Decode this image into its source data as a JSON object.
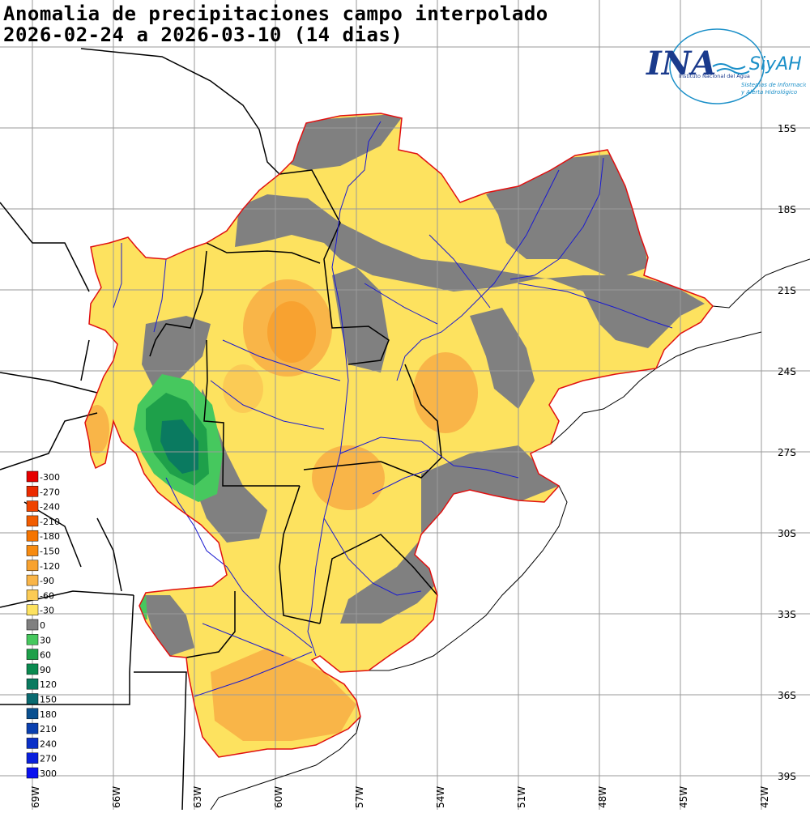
{
  "title": {
    "line1": "Anomalia de precipitaciones campo interpolado",
    "line2": "2026-02-24 a 2026-03-10 (14 dias)"
  },
  "logo": {
    "brand": "INA",
    "system": "SiyAH",
    "subtitle1": "Instituto Nacional del Agua",
    "subtitle2": "Sistemas de Información",
    "subtitle3": "y Alerta Hidrológico"
  },
  "latitude_labels": [
    "15S",
    "18S",
    "21S",
    "24S",
    "27S",
    "30S",
    "33S",
    "36S",
    "39S"
  ],
  "longitude_labels": [
    "69W",
    "66W",
    "63W",
    "60W",
    "57W",
    "54W",
    "51W",
    "48W",
    "45W",
    "42W"
  ],
  "legend": {
    "entries": [
      {
        "label": "-300",
        "color": "#e60000"
      },
      {
        "label": "-270",
        "color": "#eb2a00"
      },
      {
        "label": "-240",
        "color": "#ef4400"
      },
      {
        "label": "-210",
        "color": "#f25c00"
      },
      {
        "label": "-180",
        "color": "#f57400"
      },
      {
        "label": "-150",
        "color": "#f78b10"
      },
      {
        "label": "-120",
        "color": "#f8a230"
      },
      {
        "label": "-90",
        "color": "#f9b548"
      },
      {
        "label": "-60",
        "color": "#fbcb55"
      },
      {
        "label": "-30",
        "color": "#fde25f"
      },
      {
        "label": "0",
        "color": "#808080"
      },
      {
        "label": "30",
        "color": "#46c85e"
      },
      {
        "label": "60",
        "color": "#1ea04a"
      },
      {
        "label": "90",
        "color": "#0a8a50"
      },
      {
        "label": "120",
        "color": "#0a7a60"
      },
      {
        "label": "150",
        "color": "#0a6a70"
      },
      {
        "label": "180",
        "color": "#0a5090"
      },
      {
        "label": "210",
        "color": "#0a40b0"
      },
      {
        "label": "240",
        "color": "#0a30c8"
      },
      {
        "label": "270",
        "color": "#0a20dc"
      },
      {
        "label": "300",
        "color": "#0a10f0"
      }
    ]
  },
  "colors": {
    "basin_border": "#e01010",
    "rivers": "#1a1ad0",
    "political_borders": "#000000",
    "grid": "#9a9a9a"
  }
}
